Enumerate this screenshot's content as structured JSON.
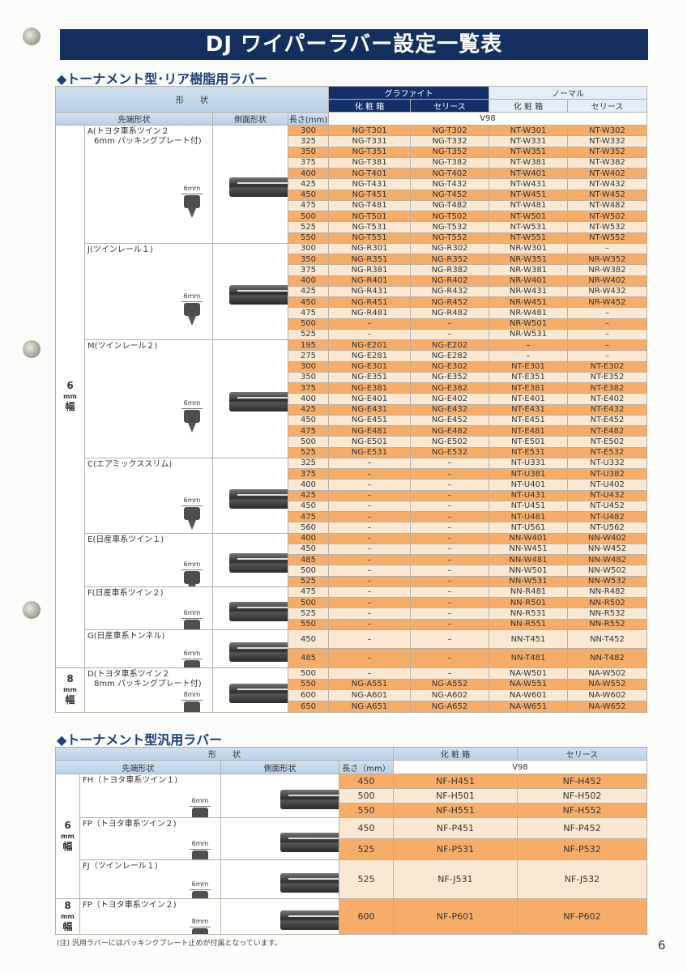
{
  "page_title": "DJ ワイパーラバー設定一覧表",
  "page_number": "6",
  "rear": {
    "title": "◆トーナメント型･リア樹脂用ラバー",
    "headers": {
      "shape": "形　　状",
      "tip": "先端形状",
      "side": "側面形状",
      "length": "長さ(mm)",
      "graphite": "グラファイト",
      "normal": "ノーマル",
      "box": "化 粧 箱",
      "series": "セリース",
      "box2": "化 粧 箱",
      "series2": "セリース",
      "v98": "V98"
    },
    "widths": [
      {
        "num": "6",
        "unit": "mm",
        "kanji": "幅"
      },
      {
        "num": "8",
        "unit": "mm",
        "kanji": "幅"
      }
    ],
    "groups": [
      {
        "w": 0,
        "name": "A(トヨタ車系ツイン２",
        "note": "6mm パッキングプレート付)",
        "tip_mm": "6mm",
        "rows": [
          [
            "300",
            "NG-T301",
            "NG-T302",
            "NT-W301",
            "NT-W302"
          ],
          [
            "325",
            "NG-T331",
            "NG-T332",
            "NT-W331",
            "NT-W332"
          ],
          [
            "350",
            "NG-T351",
            "NG-T352",
            "NT-W351",
            "NT-W352"
          ],
          [
            "375",
            "NG-T381",
            "NG-T382",
            "NT-W381",
            "NT-W382"
          ],
          [
            "400",
            "NG-T401",
            "NG-T402",
            "NT-W401",
            "NT-W402"
          ],
          [
            "425",
            "NG-T431",
            "NG-T432",
            "NT-W431",
            "NT-W432"
          ],
          [
            "450",
            "NG-T451",
            "NG-T452",
            "NT-W451",
            "NT-W452"
          ],
          [
            "475",
            "NG-T481",
            "NG-T482",
            "NT-W481",
            "NT-W482"
          ],
          [
            "500",
            "NG-T501",
            "NG-T502",
            "NT-W501",
            "NT-W502"
          ],
          [
            "525",
            "NG-T531",
            "NG-T532",
            "NT-W531",
            "NT-W532"
          ],
          [
            "550",
            "NG-T551",
            "NG-T552",
            "NT-W551",
            "NT-W552"
          ]
        ]
      },
      {
        "w": 0,
        "name": "J(ツインレール１)",
        "note": "",
        "tip_mm": "6mm",
        "rows": [
          [
            "300",
            "NG-R301",
            "NG-R302",
            "NR-W301",
            "–"
          ],
          [
            "350",
            "NG-R351",
            "NG-R352",
            "NR-W351",
            "NR-W352"
          ],
          [
            "375",
            "NG-R381",
            "NG-R382",
            "NR-W381",
            "NR-W382"
          ],
          [
            "400",
            "NG-R401",
            "NG-R402",
            "NR-W401",
            "NR-W402"
          ],
          [
            "425",
            "NG-R431",
            "NG-R432",
            "NR-W431",
            "NR-W432"
          ],
          [
            "450",
            "NG-R451",
            "NG-R452",
            "NR-W451",
            "NR-W452"
          ],
          [
            "475",
            "NG-R481",
            "NG-R482",
            "NR-W481",
            "–"
          ],
          [
            "500",
            "–",
            "–",
            "NR-W501",
            "–"
          ],
          [
            "525",
            "–",
            "–",
            "NR-W531",
            "–"
          ]
        ]
      },
      {
        "w": 0,
        "name": "M(ツインレール２)",
        "note": "",
        "tip_mm": "6mm",
        "rows": [
          [
            "195",
            "NG-E201",
            "NG-E202",
            "–",
            "–"
          ],
          [
            "275",
            "NG-E281",
            "NG-E282",
            "–",
            "–"
          ],
          [
            "300",
            "NG-E301",
            "NG-E302",
            "NT-E301",
            "NT-E302"
          ],
          [
            "350",
            "NG-E351",
            "NG-E352",
            "NT-E351",
            "NT-E352"
          ],
          [
            "375",
            "NG-E381",
            "NG-E382",
            "NT-E381",
            "NT-E382"
          ],
          [
            "400",
            "NG-E401",
            "NG-E402",
            "NT-E401",
            "NT-E402"
          ],
          [
            "425",
            "NG-E431",
            "NG-E432",
            "NT-E431",
            "NT-E432"
          ],
          [
            "450",
            "NG-E451",
            "NG-E452",
            "NT-E451",
            "NT-E452"
          ],
          [
            "475",
            "NG-E481",
            "NG-E482",
            "NT-E481",
            "NT-E482"
          ],
          [
            "500",
            "NG-E501",
            "NG-E502",
            "NT-E501",
            "NT-E502"
          ],
          [
            "525",
            "NG-E531",
            "NG-E532",
            "NT-E531",
            "NT-E532"
          ]
        ]
      },
      {
        "w": 0,
        "name": "C(エアミックススリム)",
        "note": "",
        "tip_mm": "6mm",
        "rows": [
          [
            "325",
            "–",
            "–",
            "NT-U331",
            "NT-U332"
          ],
          [
            "375",
            "–",
            "–",
            "NT-U381",
            "NT-U382"
          ],
          [
            "400",
            "–",
            "–",
            "NT-U401",
            "NT-U402"
          ],
          [
            "425",
            "–",
            "–",
            "NT-U431",
            "NT-U432"
          ],
          [
            "450",
            "–",
            "–",
            "NT-U451",
            "NT-U452"
          ],
          [
            "475",
            "–",
            "–",
            "NT-U481",
            "NT-U482"
          ],
          [
            "560",
            "–",
            "–",
            "NT-U561",
            "NT-U562"
          ]
        ]
      },
      {
        "w": 0,
        "name": "E(日産車系ツイン１)",
        "note": "",
        "tip_mm": "6mm",
        "rows": [
          [
            "400",
            "–",
            "–",
            "NN-W401",
            "NN-W402"
          ],
          [
            "450",
            "–",
            "–",
            "NN-W451",
            "NN-W452"
          ],
          [
            "485",
            "–",
            "–",
            "NN-W481",
            "NN-W482"
          ],
          [
            "500",
            "–",
            "–",
            "NN-W501",
            "NN-W502"
          ],
          [
            "525",
            "–",
            "–",
            "NN-W531",
            "NN-W532"
          ]
        ]
      },
      {
        "w": 0,
        "name": "F(日産車系ツイン２)",
        "note": "",
        "tip_mm": "6mm",
        "rows": [
          [
            "475",
            "–",
            "–",
            "NN-R481",
            "NN-R482"
          ],
          [
            "500",
            "–",
            "–",
            "NN-R501",
            "NN-R502"
          ],
          [
            "525",
            "–",
            "–",
            "NN-R531",
            "NN-R532"
          ],
          [
            "550",
            "–",
            "–",
            "NN-R551",
            "NN-R552"
          ]
        ]
      },
      {
        "w": 0,
        "name": "G(日産車系トンネル)",
        "note": "",
        "tip_mm": "6mm",
        "tall": true,
        "rows": [
          [
            "450",
            "–",
            "–",
            "NN-T451",
            "NN-T452"
          ],
          [
            "485",
            "–",
            "–",
            "NN-T481",
            "NN-T482"
          ]
        ]
      },
      {
        "w": 1,
        "name": "D(トヨタ車系ツイン２",
        "note": "8mm パッキングプレート付)",
        "tip_mm": "8mm",
        "rows": [
          [
            "500",
            "–",
            "–",
            "NA-W501",
            "NA-W502"
          ],
          [
            "550",
            "NG-A551",
            "NG-A552",
            "NA-W551",
            "NA-W552"
          ],
          [
            "600",
            "NG-A601",
            "NG-A602",
            "NA-W601",
            "NA-W602"
          ],
          [
            "650",
            "NG-A651",
            "NG-A652",
            "NA-W651",
            "NA-W652"
          ]
        ]
      }
    ]
  },
  "general": {
    "title": "◆トーナメント型汎用ラバー",
    "headers": {
      "shape": "形　　状",
      "tip": "先端形状",
      "side": "側面形状",
      "length": "長さ（mm）",
      "box": "化 粧 箱",
      "series": "セリース",
      "v98": "V98"
    },
    "widths": [
      {
        "num": "6",
        "unit": "mm",
        "kanji": "幅"
      },
      {
        "num": "8",
        "unit": "mm",
        "kanji": "幅"
      }
    ],
    "groups": [
      {
        "w": 0,
        "name": "FH（トヨタ車系ツイン１)",
        "tip_mm": "6mm",
        "h": 18,
        "rows": [
          [
            "450",
            "NF-H451",
            "NF-H452"
          ],
          [
            "500",
            "NF-H501",
            "NF-H502"
          ],
          [
            "550",
            "NF-H551",
            "NF-H552"
          ]
        ]
      },
      {
        "w": 0,
        "name": "FP（トヨタ車系ツイン２)",
        "tip_mm": "6mm",
        "h": 26,
        "rows": [
          [
            "450",
            "NF-P451",
            "NF-P452"
          ],
          [
            "525",
            "NF-P531",
            "NF-P532"
          ]
        ]
      },
      {
        "w": 0,
        "name": "FJ（ツインレール１)",
        "tip_mm": "6mm",
        "h": 48,
        "rows": [
          [
            "525",
            "NF-J531",
            "NF-J532"
          ]
        ]
      },
      {
        "w": 1,
        "name": "FP（トヨタ車系ツイン２)",
        "tip_mm": "8mm",
        "h": 44,
        "rows": [
          [
            "600",
            "NF-P601",
            "NF-P602"
          ]
        ]
      }
    ],
    "note": "(注) 汎用ラバーにはパッキンクプレート止めが付属となっています。"
  },
  "colors": {
    "title_bar": "#13305e",
    "row_orange": "#f6ad6a",
    "row_light": "#fbe8d2"
  }
}
